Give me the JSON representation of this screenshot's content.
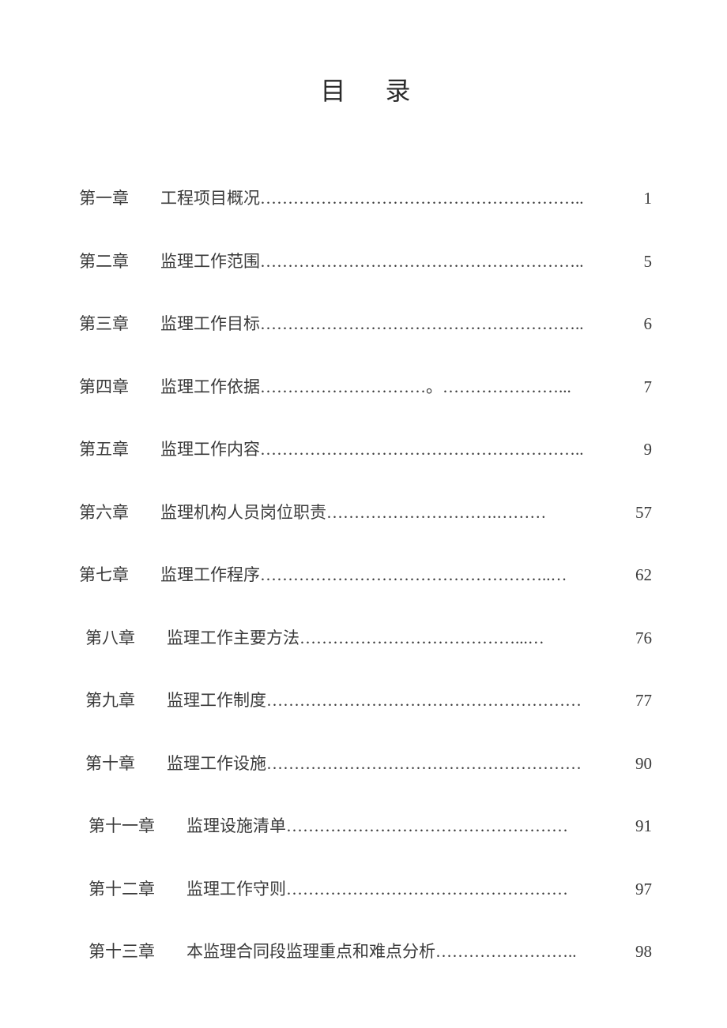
{
  "title": "目录",
  "text_color": "#3a3a3a",
  "background_color": "#ffffff",
  "font_family": "SimSun",
  "title_fontsize": 32,
  "entry_fontsize": 21,
  "entries": [
    {
      "chapter": "第一章",
      "title": "工程项目概况",
      "dots": "…………………………………………………..",
      "page": "1",
      "indent": 0
    },
    {
      "chapter": "第二章",
      "title": "监理工作范围",
      "dots": "…………………………………………………..",
      "page": "5",
      "indent": 0
    },
    {
      "chapter": "第三章",
      "title": "监理工作目标",
      "dots": "…………………………………………………..",
      "page": "6",
      "indent": 0
    },
    {
      "chapter": "第四章",
      "title": "监理工作依据",
      "dots": "…………………………。…………………...",
      "page": "7",
      "indent": 0
    },
    {
      "chapter": "第五章",
      "title": "监理工作内容",
      "dots": "………………………………………………….. ",
      "page": "9",
      "indent": 0
    },
    {
      "chapter": "第六章",
      "title": "监理机构人员岗位职责",
      "dots": "………………………….………",
      "page": "57",
      "indent": 0
    },
    {
      "chapter": "第七章",
      "title": "监理工作程序",
      "dots": "……………………………………………..…",
      "page": "62",
      "indent": 0
    },
    {
      "chapter": "第八章",
      "title": "监理工作主要方法",
      "dots": "…………………………………...…",
      "page": "76",
      "indent": 1
    },
    {
      "chapter": "第九章",
      "title": "监理工作制度",
      "dots": "…………………………………………………",
      "page": "77",
      "indent": 1
    },
    {
      "chapter": "第十章",
      "title": "监理工作设施",
      "dots": "…………………………………………………",
      "page": "90",
      "indent": 1
    },
    {
      "chapter": "第十一章",
      "title": "监理设施清单",
      "dots": "……………………………………………",
      "page": "91",
      "indent": 2
    },
    {
      "chapter": "第十二章",
      "title": "监理工作守则",
      "dots": "……………………………………………",
      "page": "97",
      "indent": 2
    },
    {
      "chapter": "第十三章",
      "title": "本监理合同段监理重点和难点分析",
      "dots": "…………………….. ",
      "page": "98",
      "indent": 2
    }
  ]
}
